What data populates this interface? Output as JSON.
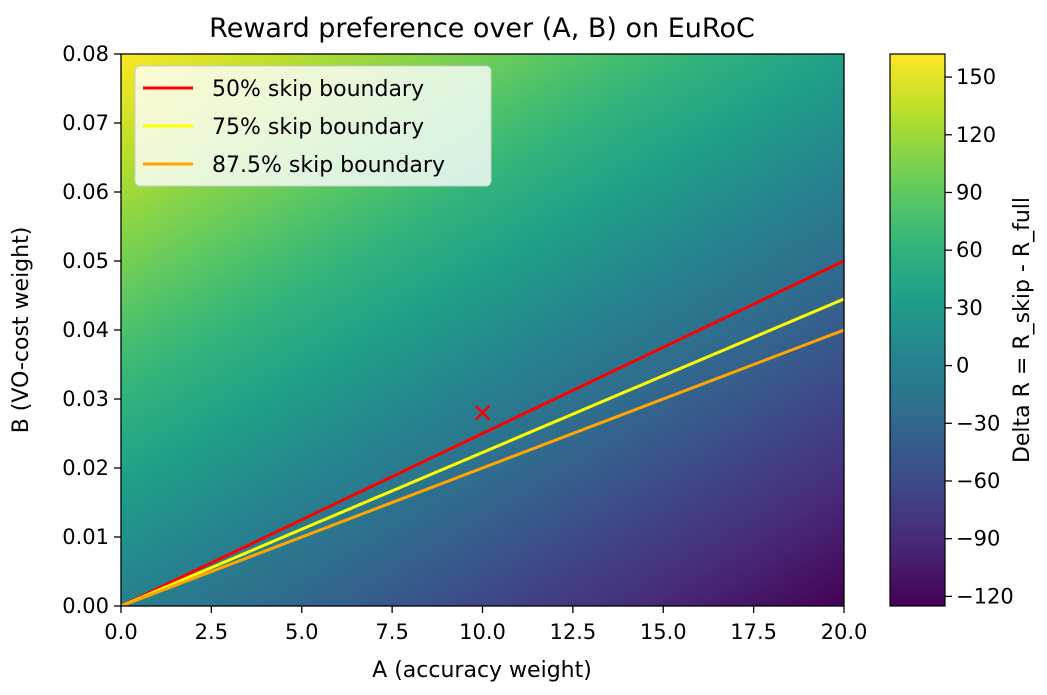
{
  "chart_data": {
    "type": "heatmap",
    "title": "Reward preference over (A, B) on EuRoC",
    "xlabel": "A (accuracy weight)",
    "ylabel": "B (VO-cost weight)",
    "xlim": [
      0,
      20
    ],
    "ylim": [
      0,
      0.08
    ],
    "x_ticks": [
      "0.0",
      "2.5",
      "5.0",
      "7.5",
      "10.0",
      "12.5",
      "15.0",
      "17.5",
      "20.0"
    ],
    "y_ticks": [
      "0.00",
      "0.01",
      "0.02",
      "0.03",
      "0.04",
      "0.05",
      "0.06",
      "0.07",
      "0.08"
    ],
    "colormap": "viridis",
    "colorbar": {
      "label": "Delta R = R_skip - R_full",
      "range": [
        -125,
        162
      ],
      "ticks": [
        150,
        120,
        90,
        60,
        30,
        0,
        -30,
        -60,
        -90,
        -120
      ],
      "tick_labels": [
        "150",
        "120",
        "90",
        "60",
        "30",
        "0",
        "−30",
        "−60",
        "−90",
        "−120"
      ]
    },
    "field_corners": {
      "A0_B0": 0,
      "A0_B0.08": 162,
      "A20_B0": -125,
      "A20_B0.08": 45
    },
    "series": [
      {
        "name": "50% skip boundary",
        "color": "#ff0000",
        "x": [
          0,
          20
        ],
        "y": [
          0,
          0.05
        ]
      },
      {
        "name": "75% skip boundary",
        "color": "#ffff00",
        "x": [
          0,
          20
        ],
        "y": [
          0,
          0.0445
        ]
      },
      {
        "name": "87.5% skip boundary",
        "color": "#ffa500",
        "x": [
          0,
          20
        ],
        "y": [
          0,
          0.04
        ]
      }
    ],
    "marker": {
      "x": 10,
      "y": 0.028,
      "symbol": "x",
      "color": "#ff0000"
    },
    "legend_position": "top-left",
    "grid": false
  }
}
